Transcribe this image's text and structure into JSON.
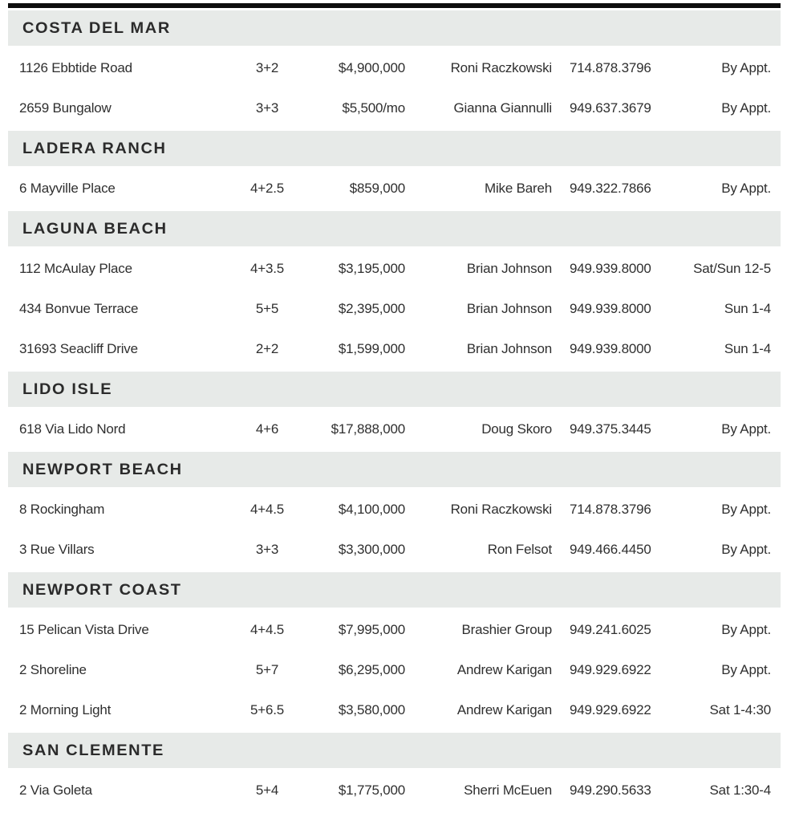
{
  "colors": {
    "top_rule": "#0d0d0d",
    "band_background": "#e7eae8",
    "band_text": "#2b2b2b",
    "row_text": "#2f2f2f",
    "page_background": "#ffffff"
  },
  "table": {
    "sections": [
      {
        "name": "COSTA DEL MAR",
        "listings": [
          {
            "address": "1126 Ebbtide Road",
            "beds_baths": "3+2",
            "price": "$4,900,000",
            "agent": "Roni Raczkowski",
            "phone": "714.878.3796",
            "open": "By Appt."
          },
          {
            "address": "2659 Bungalow",
            "beds_baths": "3+3",
            "price": "$5,500/mo",
            "agent": "Gianna Giannulli",
            "phone": "949.637.3679",
            "open": "By Appt."
          }
        ]
      },
      {
        "name": "LADERA RANCH",
        "listings": [
          {
            "address": "6 Mayville Place",
            "beds_baths": "4+2.5",
            "price": "$859,000",
            "agent": "Mike Bareh",
            "phone": "949.322.7866",
            "open": "By Appt."
          }
        ]
      },
      {
        "name": "LAGUNA BEACH",
        "listings": [
          {
            "address": "112 McAulay Place",
            "beds_baths": "4+3.5",
            "price": "$3,195,000",
            "agent": "Brian Johnson",
            "phone": "949.939.8000",
            "open": "Sat/Sun 12-5"
          },
          {
            "address": "434 Bonvue Terrace",
            "beds_baths": "5+5",
            "price": "$2,395,000",
            "agent": "Brian Johnson",
            "phone": "949.939.8000",
            "open": "Sun 1-4"
          },
          {
            "address": "31693 Seacliff Drive",
            "beds_baths": "2+2",
            "price": "$1,599,000",
            "agent": "Brian Johnson",
            "phone": "949.939.8000",
            "open": "Sun 1-4"
          }
        ]
      },
      {
        "name": "LIDO ISLE",
        "listings": [
          {
            "address": "618 Via Lido Nord",
            "beds_baths": "4+6",
            "price": "$17,888,000",
            "agent": "Doug Skoro",
            "phone": "949.375.3445",
            "open": "By Appt."
          }
        ]
      },
      {
        "name": "NEWPORT BEACH",
        "listings": [
          {
            "address": "8 Rockingham",
            "beds_baths": "4+4.5",
            "price": "$4,100,000",
            "agent": "Roni Raczkowski",
            "phone": "714.878.3796",
            "open": "By Appt."
          },
          {
            "address": "3 Rue Villars",
            "beds_baths": "3+3",
            "price": "$3,300,000",
            "agent": "Ron Felsot",
            "phone": "949.466.4450",
            "open": "By Appt."
          }
        ]
      },
      {
        "name": "NEWPORT COAST",
        "listings": [
          {
            "address": "15 Pelican Vista Drive",
            "beds_baths": "4+4.5",
            "price": "$7,995,000",
            "agent": "Brashier Group",
            "phone": "949.241.6025",
            "open": "By Appt."
          },
          {
            "address": "2 Shoreline",
            "beds_baths": "5+7",
            "price": "$6,295,000",
            "agent": "Andrew Karigan",
            "phone": "949.929.6922",
            "open": "By Appt."
          },
          {
            "address": "2 Morning Light",
            "beds_baths": "5+6.5",
            "price": "$3,580,000",
            "agent": "Andrew Karigan",
            "phone": "949.929.6922",
            "open": "Sat 1-4:30"
          }
        ]
      },
      {
        "name": "SAN CLEMENTE",
        "listings": [
          {
            "address": "2 Via Goleta",
            "beds_baths": "5+4",
            "price": "$1,775,000",
            "agent": "Sherri McEuen",
            "phone": "949.290.5633",
            "open": "Sat 1:30-4"
          }
        ]
      }
    ]
  }
}
